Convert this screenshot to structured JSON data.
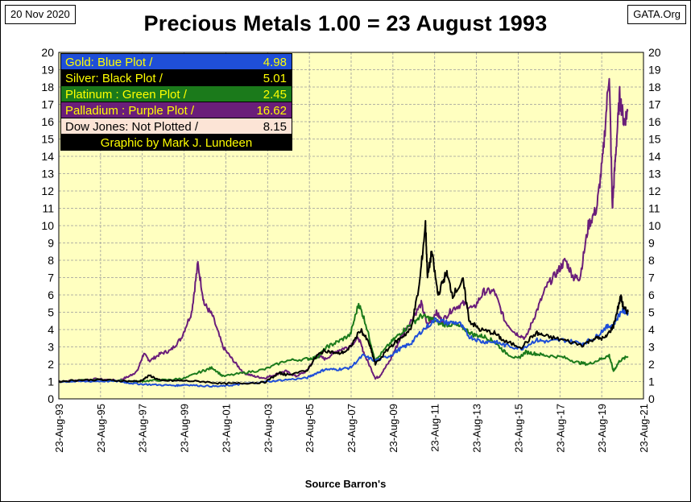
{
  "header": {
    "date": "20 Nov 2020",
    "title": "Precious Metals  1.00 = 23 August 1993",
    "source_site": "GATA.Org"
  },
  "footer": {
    "source": "Source Barron's"
  },
  "colors": {
    "plot_bg": "#FFFFC0",
    "grid": "#9a9a9a",
    "gold": "#1F4FD8",
    "silver": "#000000",
    "platinum": "#1B7A1B",
    "palladium": "#6A1E7A"
  },
  "legend": [
    {
      "label": "Gold: Blue Plot /",
      "value": "4.98",
      "bg": "#1F4FD8",
      "fg": "#FFFF00"
    },
    {
      "label": "Silver: Black Plot /",
      "value": "5.01",
      "bg": "#000000",
      "fg": "#FFFF00"
    },
    {
      "label": "Platinum : Green Plot /",
      "value": "2.45",
      "bg": "#1B7A1B",
      "fg": "#FFFF00"
    },
    {
      "label": "Palladium : Purple Plot /",
      "value": "16.62",
      "bg": "#6A1E7A",
      "fg": "#FFFF00"
    },
    {
      "label": "Dow Jones: Not Plotted /",
      "value": "8.15",
      "bg": "#FCE4D6",
      "fg": "#000000"
    },
    {
      "label": "Graphic by Mark J. Lundeen",
      "value": "",
      "bg": "#000000",
      "fg": "#FFFF00"
    }
  ],
  "chart_data": {
    "type": "line",
    "title": "Precious Metals  1.00 = 23 August 1993",
    "xlabel": "Source Barron's",
    "ylabel": "",
    "xlim": [
      1993.64,
      2021.64
    ],
    "ylim": [
      0,
      20
    ],
    "yticks": [
      0,
      1,
      2,
      3,
      4,
      5,
      6,
      7,
      8,
      9,
      10,
      11,
      12,
      13,
      14,
      15,
      16,
      17,
      18,
      19,
      20
    ],
    "xticks": [
      {
        "x": 1993.64,
        "label": "23-Aug-93"
      },
      {
        "x": 1995.64,
        "label": "23-Aug-95"
      },
      {
        "x": 1997.64,
        "label": "23-Aug-97"
      },
      {
        "x": 1999.64,
        "label": "23-Aug-99"
      },
      {
        "x": 2001.64,
        "label": "23-Aug-01"
      },
      {
        "x": 2003.64,
        "label": "23-Aug-03"
      },
      {
        "x": 2005.64,
        "label": "23-Aug-05"
      },
      {
        "x": 2007.64,
        "label": "23-Aug-07"
      },
      {
        "x": 2009.64,
        "label": "23-Aug-09"
      },
      {
        "x": 2011.64,
        "label": "23-Aug-11"
      },
      {
        "x": 2013.64,
        "label": "23-Aug-13"
      },
      {
        "x": 2015.64,
        "label": "23-Aug-15"
      },
      {
        "x": 2017.64,
        "label": "23-Aug-17"
      },
      {
        "x": 2019.64,
        "label": "23-Aug-19"
      },
      {
        "x": 2021.64,
        "label": "23-Aug-21"
      }
    ],
    "grid": true,
    "series": [
      {
        "name": "Gold",
        "color": "#1F4FD8",
        "x": [
          1993.64,
          1994.5,
          1995.5,
          1996.5,
          1997.0,
          1997.6,
          1998.5,
          1999.3,
          1999.7,
          2000.5,
          2001.3,
          2002.0,
          2002.5,
          2003.5,
          2004.5,
          2005.5,
          2006.0,
          2006.4,
          2007.0,
          2007.6,
          2008.2,
          2008.8,
          2009.5,
          2010.0,
          2010.5,
          2011.0,
          2011.7,
          2012.2,
          2012.8,
          2013.3,
          2013.9,
          2014.5,
          2015.0,
          2015.8,
          2016.5,
          2017.0,
          2017.8,
          2018.7,
          2019.3,
          2019.8,
          2020.2,
          2020.6,
          2020.9
        ],
        "y": [
          1.0,
          1.0,
          1.02,
          1.02,
          0.92,
          0.85,
          0.8,
          0.77,
          0.82,
          0.75,
          0.72,
          0.8,
          0.87,
          0.98,
          1.1,
          1.2,
          1.5,
          1.7,
          1.7,
          1.8,
          2.5,
          2.2,
          2.5,
          2.9,
          3.2,
          3.9,
          4.6,
          4.4,
          4.4,
          3.6,
          3.3,
          3.3,
          3.1,
          2.9,
          3.4,
          3.3,
          3.4,
          3.2,
          3.5,
          4.1,
          4.3,
          5.1,
          4.98
        ]
      },
      {
        "name": "Silver",
        "color": "#000000",
        "x": [
          1993.64,
          1994.5,
          1995.5,
          1996.5,
          1997.5,
          1998.0,
          1998.5,
          1999.5,
          2000.5,
          2001.5,
          2002.5,
          2003.5,
          2004.2,
          2004.5,
          2005.5,
          2006.0,
          2006.4,
          2007.0,
          2007.5,
          2008.1,
          2008.5,
          2008.8,
          2009.5,
          2010.0,
          2010.5,
          2010.9,
          2011.2,
          2011.3,
          2011.5,
          2011.8,
          2012.2,
          2012.5,
          2013.0,
          2013.3,
          2013.8,
          2014.5,
          2015.0,
          2015.8,
          2016.5,
          2017.0,
          2017.8,
          2018.7,
          2019.3,
          2019.8,
          2020.2,
          2020.55,
          2020.7,
          2020.9
        ],
        "y": [
          1.0,
          1.08,
          1.1,
          1.05,
          1.0,
          1.35,
          1.05,
          1.05,
          1.0,
          0.88,
          0.9,
          0.95,
          1.5,
          1.4,
          1.6,
          2.5,
          2.8,
          2.6,
          2.8,
          4.0,
          3.2,
          2.0,
          3.0,
          3.5,
          4.0,
          6.5,
          10.1,
          7.0,
          8.5,
          6.0,
          7.3,
          6.0,
          6.8,
          4.5,
          4.0,
          3.8,
          3.3,
          3.0,
          3.8,
          3.6,
          3.4,
          3.1,
          3.5,
          3.5,
          4.2,
          5.9,
          5.2,
          5.01
        ]
      },
      {
        "name": "Platinum",
        "color": "#1B7A1B",
        "x": [
          1993.64,
          1994.5,
          1995.5,
          1996.5,
          1997.3,
          1998.0,
          1999.0,
          1999.7,
          2000.5,
          2001.0,
          2001.5,
          2002.5,
          2003.5,
          2004.5,
          2005.5,
          2006.0,
          2006.5,
          2007.0,
          2007.6,
          2008.0,
          2008.3,
          2008.8,
          2009.5,
          2010.0,
          2010.5,
          2011.0,
          2011.5,
          2012.0,
          2012.5,
          2013.0,
          2013.5,
          2014.0,
          2014.5,
          2015.0,
          2015.6,
          2016.0,
          2016.5,
          2017.0,
          2017.8,
          2018.5,
          2019.0,
          2019.6,
          2020.0,
          2020.2,
          2020.5,
          2020.9
        ],
        "y": [
          1.0,
          1.05,
          1.1,
          1.05,
          1.0,
          1.05,
          1.1,
          1.2,
          1.6,
          1.8,
          1.3,
          1.5,
          1.7,
          2.2,
          2.3,
          2.4,
          3.0,
          3.3,
          3.7,
          5.5,
          4.5,
          2.2,
          3.2,
          3.8,
          4.3,
          4.8,
          4.6,
          4.3,
          4.3,
          4.1,
          3.7,
          3.6,
          3.3,
          2.7,
          2.3,
          2.7,
          2.6,
          2.5,
          2.4,
          2.1,
          2.0,
          2.3,
          2.5,
          1.6,
          2.2,
          2.45
        ]
      },
      {
        "name": "Palladium",
        "color": "#6A1E7A",
        "x": [
          1993.64,
          1994.5,
          1995.5,
          1996.5,
          1997.0,
          1997.4,
          1997.7,
          1998.0,
          1998.5,
          1999.0,
          1999.5,
          2000.0,
          2000.3,
          2000.6,
          2001.0,
          2001.5,
          2002.0,
          2002.5,
          2003.0,
          2003.5,
          2004.0,
          2004.5,
          2005.0,
          2005.5,
          2006.0,
          2006.4,
          2007.0,
          2007.5,
          2008.0,
          2008.3,
          2008.8,
          2009.0,
          2009.5,
          2010.0,
          2010.5,
          2011.0,
          2011.3,
          2011.7,
          2012.0,
          2012.5,
          2013.0,
          2013.5,
          2014.0,
          2014.5,
          2015.0,
          2015.5,
          2016.0,
          2016.5,
          2017.0,
          2017.5,
          2017.9,
          2018.3,
          2018.6,
          2019.0,
          2019.4,
          2019.7,
          2020.0,
          2020.15,
          2020.3,
          2020.5,
          2020.7,
          2020.9
        ],
        "y": [
          1.0,
          1.05,
          1.15,
          1.05,
          1.3,
          1.6,
          2.6,
          2.2,
          2.6,
          2.8,
          3.5,
          5.0,
          7.8,
          5.5,
          4.8,
          3.0,
          2.2,
          1.5,
          1.3,
          1.2,
          1.4,
          1.6,
          1.3,
          1.6,
          2.5,
          2.3,
          2.8,
          3.0,
          3.5,
          2.5,
          1.2,
          1.3,
          2.2,
          3.5,
          4.5,
          5.5,
          4.2,
          5.0,
          4.5,
          5.2,
          5.5,
          5.2,
          6.2,
          6.2,
          4.5,
          3.8,
          3.5,
          5.0,
          6.5,
          7.3,
          8.0,
          7.0,
          7.0,
          10.0,
          11.0,
          14.0,
          18.9,
          11.0,
          14.0,
          17.5,
          16.0,
          16.62
        ]
      }
    ]
  }
}
